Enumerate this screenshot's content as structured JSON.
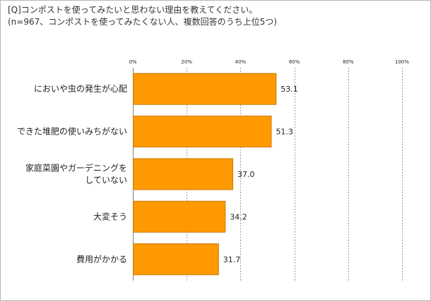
{
  "chart_data": {
    "type": "bar",
    "orientation": "horizontal",
    "title_line1": "[Q]コンポストを使ってみたいと思わない理由を教えてください。",
    "title_line2": "(n=967、コンポストを使ってみたくない人、複数回答のうち上位5つ)",
    "categories": [
      [
        "においや虫の発生が心配"
      ],
      [
        "できた堆肥の使いみちがない"
      ],
      [
        "家庭菜園やガーデニングを",
        "していない"
      ],
      [
        "大変そう"
      ],
      [
        "費用がかかる"
      ]
    ],
    "values": [
      53.1,
      51.3,
      37.0,
      34.2,
      31.7
    ],
    "value_labels": [
      "53.1",
      "51.3",
      "37.0",
      "34.2",
      "31.7"
    ],
    "xlim": [
      0,
      100
    ],
    "xticks": [
      0,
      20,
      40,
      60,
      80,
      100
    ],
    "xtick_labels": [
      "0%",
      "20%",
      "40%",
      "60%",
      "80%",
      "100%"
    ],
    "grid": true,
    "bar_color": "#FF9900",
    "bar_edge_color": "#C87800"
  }
}
